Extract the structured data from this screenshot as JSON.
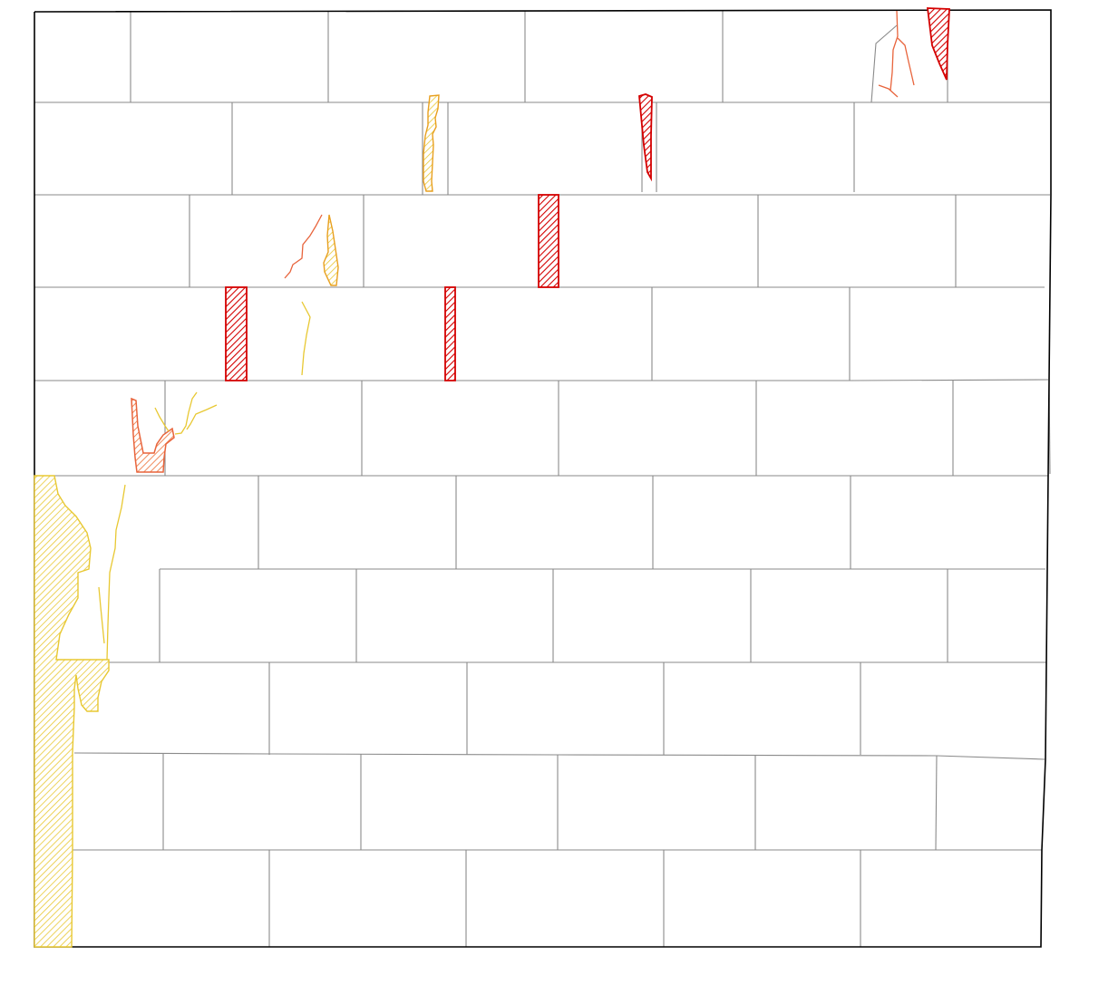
{
  "diagram": {
    "kind": "masonry-wall-damage-map",
    "rows": 10,
    "annotations": [],
    "colors": {
      "outline": "#000000",
      "joint": "#8a8a8a",
      "severe": "#d40000",
      "moderate": "#e8643c",
      "minor": "#e8c832",
      "severe_fill": "#d40000",
      "moderate_fill": "#f08a5a",
      "minor_fill": "#f0d468"
    },
    "legend_categories": [
      "severe",
      "moderate",
      "minor"
    ],
    "damage_items": [
      {
        "id": "d1",
        "severity": "severe",
        "type": "missing-material"
      },
      {
        "id": "d2",
        "severity": "severe",
        "type": "open-joint"
      },
      {
        "id": "d3",
        "severity": "severe",
        "type": "open-joint"
      },
      {
        "id": "d4",
        "severity": "severe",
        "type": "open-joint"
      },
      {
        "id": "d5",
        "severity": "severe",
        "type": "open-joint"
      },
      {
        "id": "d6",
        "severity": "moderate",
        "type": "spalling"
      },
      {
        "id": "d7",
        "severity": "minor",
        "type": "spalling"
      },
      {
        "id": "d8",
        "severity": "minor",
        "type": "erosion"
      },
      {
        "id": "d9",
        "severity": "minor",
        "type": "spalling"
      },
      {
        "id": "c1",
        "severity": "moderate",
        "type": "crack"
      },
      {
        "id": "c2",
        "severity": "minor",
        "type": "crack"
      },
      {
        "id": "c3",
        "severity": "minor",
        "type": "crack"
      }
    ]
  }
}
